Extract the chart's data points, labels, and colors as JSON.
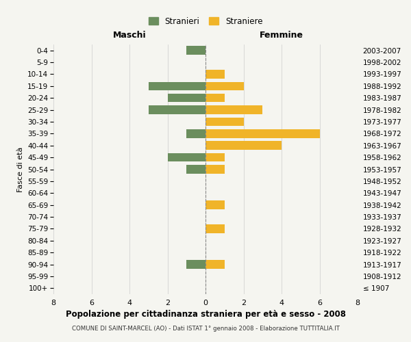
{
  "age_groups": [
    "100+",
    "95-99",
    "90-94",
    "85-89",
    "80-84",
    "75-79",
    "70-74",
    "65-69",
    "60-64",
    "55-59",
    "50-54",
    "45-49",
    "40-44",
    "35-39",
    "30-34",
    "25-29",
    "20-24",
    "15-19",
    "10-14",
    "5-9",
    "0-4"
  ],
  "birth_years": [
    "≤ 1907",
    "1908-1912",
    "1913-1917",
    "1918-1922",
    "1923-1927",
    "1928-1932",
    "1933-1937",
    "1938-1942",
    "1943-1947",
    "1948-1952",
    "1953-1957",
    "1958-1962",
    "1963-1967",
    "1968-1972",
    "1973-1977",
    "1978-1982",
    "1983-1987",
    "1988-1992",
    "1993-1997",
    "1998-2002",
    "2003-2007"
  ],
  "maschi": [
    0,
    0,
    1,
    0,
    0,
    0,
    0,
    0,
    0,
    0,
    1,
    2,
    0,
    1,
    0,
    3,
    2,
    3,
    0,
    0,
    1
  ],
  "femmine": [
    0,
    0,
    1,
    0,
    0,
    1,
    0,
    1,
    0,
    0,
    1,
    1,
    4,
    6,
    2,
    3,
    1,
    2,
    1,
    0,
    0
  ],
  "color_maschi": "#6b8e5e",
  "color_femmine": "#f0b429",
  "background_color": "#f5f5f0",
  "bar_height": 0.72,
  "xlim": 8,
  "title": "Popolazione per cittadinanza straniera per età e sesso - 2008",
  "subtitle": "COMUNE DI SAINT-MARCEL (AO) - Dati ISTAT 1° gennaio 2008 - Elaborazione TUTTITALIA.IT",
  "ylabel_left": "Fasce di età",
  "xlabel_maschi": "Maschi",
  "xlabel_femmine": "Femmine",
  "legend_maschi": "Stranieri",
  "legend_femmine": "Straniere"
}
